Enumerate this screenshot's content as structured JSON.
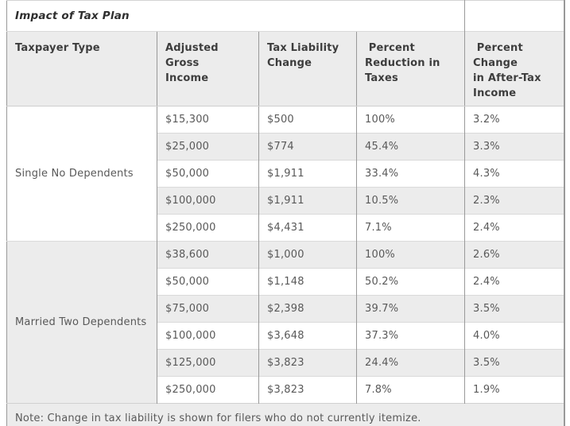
{
  "table": {
    "title": "Impact of Tax Plan",
    "headers": {
      "taxpayer_type": "Taxpayer Type",
      "agi": "Adjusted Gross\nIncome",
      "tax_change": "Tax Liability\nChange",
      "pct_reduction": " Percent\nReduction in\nTaxes",
      "pct_after_tax": " Percent Change\nin After-Tax\nIncome"
    },
    "groups": [
      {
        "label": "Single No Dependents",
        "rows": [
          {
            "agi": "$15,300",
            "tax_change": "$500",
            "pct_reduction": "100%",
            "pct_after_tax": "3.2%"
          },
          {
            "agi": "$25,000",
            "tax_change": "$774",
            "pct_reduction": "45.4%",
            "pct_after_tax": "3.3%"
          },
          {
            "agi": "$50,000",
            "tax_change": "$1,911",
            "pct_reduction": "33.4%",
            "pct_after_tax": "4.3%"
          },
          {
            "agi": "$100,000",
            "tax_change": "$1,911",
            "pct_reduction": "10.5%",
            "pct_after_tax": "2.3%"
          },
          {
            "agi": "$250,000",
            "tax_change": "$4,431",
            "pct_reduction": "7.1%",
            "pct_after_tax": "2.4%"
          }
        ]
      },
      {
        "label": "Married Two Dependents",
        "rows": [
          {
            "agi": "$38,600",
            "tax_change": "$1,000",
            "pct_reduction": "100%",
            "pct_after_tax": "2.6%"
          },
          {
            "agi": "$50,000",
            "tax_change": "$1,148",
            "pct_reduction": "50.2%",
            "pct_after_tax": "2.4%"
          },
          {
            "agi": "$75,000",
            "tax_change": "$2,398",
            "pct_reduction": "39.7%",
            "pct_after_tax": "3.5%"
          },
          {
            "agi": "$100,000",
            "tax_change": "$3,648",
            "pct_reduction": "37.3%",
            "pct_after_tax": "4.0%"
          },
          {
            "agi": "$125,000",
            "tax_change": "$3,823",
            "pct_reduction": "24.4%",
            "pct_after_tax": "3.5%"
          },
          {
            "agi": "$250,000",
            "tax_change": "$3,823",
            "pct_reduction": "7.8%",
            "pct_after_tax": "1.9%"
          }
        ]
      }
    ],
    "note": "Note: Change in tax liability is shown for filers who do not currently itemize.",
    "colors": {
      "stripe_fill": "#ececec",
      "header_fill": "#ececec",
      "grid_vertical": "#999999",
      "grid_horizontal": "#d9d9d9",
      "outer_border": "#8c8c8c",
      "title_text": "#2e2e2e",
      "header_text": "#3d3d3d",
      "body_text": "#595959"
    }
  }
}
